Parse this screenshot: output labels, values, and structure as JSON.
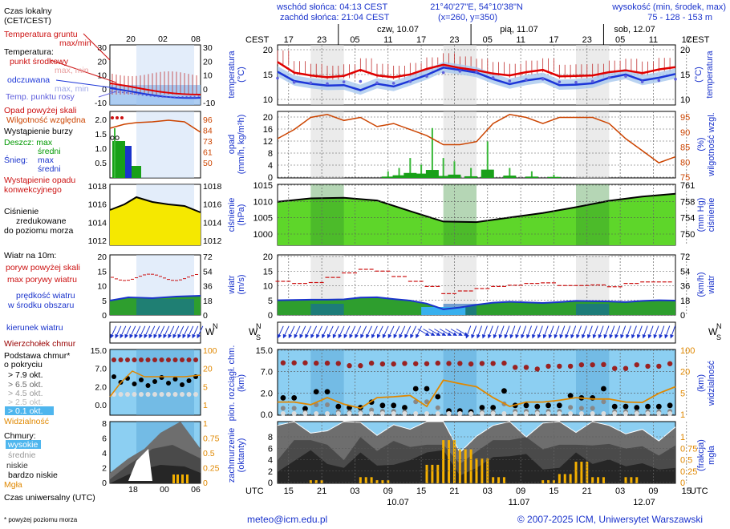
{
  "header": {
    "sunrise": "wschód słońca: 04:13 CEST",
    "sunset": "zachód słońca: 21:04 CEST",
    "coords": "21°40'27\"E, 54°10'38\"N",
    "grid": "(x=260, y=350)",
    "height_title": "wysokość (min, środek, max)",
    "heights": "75 - 128 - 153 m"
  },
  "footer": {
    "email": "meteo@icm.edu.pl",
    "copyright": "© 2007-2025 ICM, Uniwersytet Warszawski",
    "note": "* powyżej poziomu morza"
  },
  "time_axis": {
    "cest_label": "CEST",
    "utc_label": "UTC",
    "day_labels": [
      "czw, 10.07",
      "pią, 11.07",
      "sob, 12.07"
    ],
    "top_hours": [
      "17",
      "23",
      "05",
      "11",
      "17",
      "23",
      "05",
      "11",
      "17",
      "23",
      "05",
      "11",
      "17"
    ],
    "bottom_hours": [
      "15",
      "21",
      "03",
      "09",
      "15",
      "21",
      "03",
      "09",
      "15",
      "21",
      "03",
      "09",
      "15"
    ],
    "bottom_dates": [
      "10.07",
      "11.07",
      "12.07"
    ]
  },
  "legend": {
    "czas_lokalny": "Czas lokalny",
    "cest": "(CET/CEST)",
    "local_ticks": [
      "20",
      "02",
      "08"
    ],
    "utc_ticks": [
      "18",
      "00",
      "06"
    ],
    "czas_uniwersalny": "Czas uniwersalny (UTC)",
    "temp_gruntu": "Temperatura gruntu",
    "max_min": "max/min",
    "temperatura": "Temperatura:",
    "punkt_srodkowy": "punkt środkowy",
    "max_min_2": "max, min",
    "odczuwana": "odczuwana",
    "max_min_3": "max, min",
    "temp_punktu_rosy": "Temp. punktu rosy",
    "opad_powyzej_skali": "Opad powyżej skali",
    "wilgotnosc": "Wilgotność względna",
    "wystapienie_burzy": "Wystąpienie burzy",
    "deszcz_max": "Deszcz: max",
    "deszcz_sredni": "średni",
    "snieg_max": "max",
    "snieg": "Śnieg:",
    "snieg_sredni": "średni",
    "wystapienie_opadu": "Wystąpienie opadu",
    "konwekcyjnego": "konwekcyjnego",
    "cisnienie_1": "Ciśnienie",
    "cisnienie_2": "zredukowane",
    "cisnienie_3": "do poziomu morza",
    "wiatr_na": "Wiatr na 10m:",
    "poryw_powyzej": "poryw powyżej skali",
    "max_porywy": "max porywy wiatru",
    "predkosc_1": "prędkość wiatru",
    "predkosc_2": "w środku obszaru",
    "kierunek": "kierunek wiatru",
    "wierzcholek": "Wierzchołek chmur",
    "podstawa_1": "Podstawa chmur*",
    "podstawa_2": "o pokryciu",
    "okt_79": "> 7.9 okt.",
    "okt_65": "> 6.5 okt.",
    "okt_45": "> 4.5 okt.",
    "okt_25": "> 2.5 okt.",
    "okt_01": "> 0.1 okt.",
    "widzialnosc": "Widzialność",
    "chmury": "Chmury:",
    "wysokie": "wysokie",
    "srednie": "średnie",
    "niskie": "niskie",
    "bardzo_niskie": "bardzo niskie",
    "mgla": "Mgła"
  },
  "legend_axes": {
    "temp_left": [
      "30",
      "20",
      "10",
      "0",
      "-10"
    ],
    "temp_right": [
      "30",
      "20",
      "10",
      "0",
      "-10"
    ],
    "precip_left": [
      "2.0",
      "1.5",
      "1.0",
      "0.5"
    ],
    "precip_right": [
      "96",
      "84",
      "73",
      "61",
      "50"
    ],
    "press_left": [
      "1018",
      "1016",
      "1014",
      "1012"
    ],
    "press_right": [
      "1018",
      "1016",
      "1014",
      "1012"
    ],
    "wind_left": [
      "20",
      "15",
      "10",
      "5",
      "0"
    ],
    "wind_right": [
      "72",
      "54",
      "36",
      "18",
      "0"
    ],
    "cloud_left": [
      "15.0",
      "7.0",
      "2.0",
      "0.0"
    ],
    "cloud_right": [
      "100",
      "20",
      "5",
      "1"
    ],
    "cover_left": [
      "8",
      "6",
      "4",
      "2",
      "0"
    ],
    "cover_right": [
      "1",
      "0.75",
      "0.5",
      "0.25",
      "0"
    ]
  },
  "chart_data": [
    {
      "type": "line",
      "name": "temperatura",
      "ylabel": "temperatura (°C)",
      "ylim": [
        8,
        21
      ],
      "yticks_left": [
        "20",
        "15",
        "10"
      ],
      "yticks_right": [
        "20",
        "15",
        "10"
      ],
      "x_hours_from_start": [
        0,
        3,
        6,
        9,
        12,
        15,
        18,
        21,
        24,
        27,
        30,
        33,
        36,
        39,
        42,
        45,
        48,
        51,
        54,
        57,
        60,
        63,
        66,
        69,
        72
      ],
      "series": [
        {
          "name": "temperatura",
          "color": "#e00000",
          "values": [
            17.3,
            15.0,
            14.4,
            14.0,
            14.3,
            15.6,
            14.4,
            14.0,
            14.6,
            15.8,
            16.7,
            16.0,
            15.5,
            14.8,
            14.4,
            15.1,
            15.6,
            14.2,
            14.3,
            14.4,
            15.1,
            15.5,
            14.9,
            15.7,
            16.2
          ]
        },
        {
          "name": "odczuwana",
          "color": "#1c36d8",
          "values": [
            15.2,
            13.2,
            12.6,
            12.2,
            12.3,
            11.2,
            12.6,
            12.0,
            13.2,
            14.5,
            16.1,
            15.6,
            15.0,
            13.6,
            12.5,
            13.3,
            13.8,
            12.3,
            12.4,
            12.7,
            13.9,
            14.6,
            13.3,
            13.9,
            14.7
          ]
        },
        {
          "name": "punkt rosy",
          "color": "#6060dd",
          "values": [
            13.8,
            12.9,
            12.8,
            12.6,
            13.0,
            13.1,
            12.8,
            12.7,
            13.1,
            14.2,
            15.0,
            15.3,
            15.2,
            13.9,
            13.2,
            13.5,
            13.6,
            13.0,
            12.9,
            13.1,
            13.9,
            14.2,
            13.0,
            13.3,
            13.6
          ]
        }
      ]
    },
    {
      "type": "bar",
      "name": "opad",
      "ylabel": "opad (mm/h, kg/m²/h)",
      "ylim": [
        0,
        20
      ],
      "yticks_left": [
        "20",
        "16",
        "12",
        "8",
        "4",
        "0"
      ],
      "yticks_right": [
        "95",
        "90",
        "85",
        "80",
        "75"
      ],
      "ylabel_right": "(%) wilgotność wzgl.",
      "humidity_x_hours": [
        0,
        3,
        6,
        9,
        12,
        15,
        18,
        21,
        24,
        27,
        30,
        33,
        36,
        39,
        42,
        45,
        48,
        51,
        54,
        57,
        60,
        63,
        66,
        69,
        72
      ],
      "humidity": [
        88,
        91,
        95,
        96,
        94,
        95,
        92,
        93,
        91,
        89,
        86,
        86,
        87,
        93,
        96,
        95,
        93,
        95,
        95,
        95,
        93,
        88,
        84,
        80,
        82
      ],
      "precip_x_hours": [
        20,
        22,
        24,
        26,
        28,
        30,
        32,
        35,
        38,
        42,
        46,
        50
      ],
      "precip_mean": [
        0.4,
        0.8,
        1.5,
        1.3,
        2.4,
        0.6,
        1.0,
        0.5,
        2.5,
        0.7,
        0.4,
        0.3
      ],
      "precip_max": [
        2,
        3,
        6,
        4,
        15,
        6,
        5,
        3,
        11,
        3,
        2,
        1
      ]
    },
    {
      "type": "area",
      "name": "ciśnienie",
      "ylabel": "ciśnienie (hPa)",
      "ylim": [
        995,
        1015
      ],
      "yticks_left": [
        "1015",
        "1010",
        "1005",
        "1000"
      ],
      "yticks_right": [
        "761",
        "758",
        "754",
        "750"
      ],
      "ylabel_right": "(mm Hg) ciśnienie",
      "x_hours_from_start": [
        0,
        6,
        12,
        18,
        24,
        30,
        36,
        42,
        48,
        54,
        60,
        66,
        72
      ],
      "values": [
        1009.3,
        1010.4,
        1010.6,
        1009.7,
        1006.2,
        1002.8,
        1002.6,
        1004.1,
        1005.6,
        1007.5,
        1009.6,
        1011.0,
        1011.9
      ]
    },
    {
      "type": "line",
      "name": "wiatr",
      "ylabel": "wiatr (m/s)",
      "ylim": [
        0,
        20
      ],
      "yticks_left": [
        "20",
        "15",
        "10",
        "5",
        "0"
      ],
      "yticks_right": [
        "72",
        "54",
        "36",
        "18",
        "0"
      ],
      "ylabel_right": "(km/h) wiatr",
      "x_hours_from_start": [
        0,
        3,
        6,
        9,
        12,
        15,
        18,
        21,
        24,
        27,
        30,
        33,
        36,
        39,
        42,
        45,
        48,
        51,
        54,
        57,
        60,
        63,
        66,
        69,
        72
      ],
      "speed": [
        4.9,
        5.0,
        5.1,
        5.1,
        5.2,
        5.8,
        5.9,
        5.3,
        4.8,
        3.8,
        1.9,
        2.5,
        3.4,
        4.1,
        4.4,
        4.2,
        4.0,
        4.3,
        4.7,
        4.6,
        4.5,
        4.3,
        4.7,
        4.9,
        4.8
      ],
      "gusts": [
        11.2,
        10.5,
        10.8,
        12.5,
        14.0,
        15.2,
        14.6,
        12.8,
        11.2,
        9.5,
        7.1,
        8.0,
        8.8,
        9.5,
        9.9,
        10.5,
        10.7,
        9.8,
        9.8,
        10.0,
        9.4,
        10.5,
        11.0,
        11.0,
        10.5
      ]
    },
    {
      "type": "scatter",
      "name": "chmury",
      "ylabel": "pion. rozciągł. chm. (km)",
      "yticks_left": [
        "15.0",
        "7.0",
        "2.0",
        "0.0"
      ],
      "yticks_right": [
        "100",
        "20",
        "5",
        "1"
      ],
      "ylabel_right": "(km) widzialność",
      "x_hours_from_start": [
        0,
        3,
        6,
        9,
        12,
        15,
        18,
        21,
        24,
        27,
        30,
        33,
        36,
        39,
        42,
        45,
        48,
        51,
        54,
        57,
        60,
        63,
        66,
        69,
        72
      ],
      "cloud_top_km": [
        10.2,
        10.2,
        10.1,
        10.0,
        9.2,
        10.1,
        9.8,
        10.0,
        9.9,
        10.1,
        10.0,
        9.8,
        10.0,
        10.1,
        8.6,
        8.0,
        9.0,
        9.0,
        9.5,
        9.6,
        8.2,
        9.5,
        9.0,
        9.9,
        10.0
      ],
      "cloud_base_km": [
        1.6,
        0.6,
        2.4,
        0.8,
        0.7,
        1.2,
        0.9,
        0.7,
        3.1,
        1.7,
        0.4,
        0.3,
        0.7,
        2.6,
        0.9,
        0.8,
        0.9,
        1.8,
        1.6,
        3.1,
        0.8,
        0.7,
        0.8,
        0.9,
        0.8
      ],
      "visibility_km": [
        3.0,
        3.0,
        2.4,
        4.0,
        2.5,
        1.6,
        4.0,
        4.2,
        4.5,
        2.0,
        8.0,
        7.2,
        6.5,
        4.0,
        2.0,
        3.0,
        3.0,
        3.4,
        4.0,
        3.7,
        3.7,
        3.0,
        2.9,
        5.0,
        6.5
      ]
    },
    {
      "type": "area",
      "name": "zachmurzenie",
      "ylabel": "zachmurzenie (oktanty)",
      "ylim": [
        0,
        8
      ],
      "yticks_left": [
        "8",
        "6",
        "4",
        "2",
        "0"
      ],
      "yticks_right": [
        "1",
        "0.75",
        "0.5",
        "0.25",
        "0"
      ],
      "ylabel_right": "(frakcja) mgła",
      "x_hours_from_start": [
        0,
        3,
        6,
        9,
        12,
        15,
        18,
        21,
        24,
        27,
        30,
        33,
        36,
        39,
        42,
        45,
        48,
        51,
        54,
        57,
        60,
        63,
        66,
        69,
        72
      ],
      "high": [
        7.5,
        8.0,
        6.5,
        6.8,
        8.0,
        7.9,
        6.2,
        7.6,
        7.0,
        8.0,
        8.0,
        4.0,
        6.1,
        7.5,
        8.0,
        6.0,
        7.8,
        8.0,
        6.6,
        8.0,
        7.5,
        6.4,
        7.0,
        5.5,
        7.3
      ],
      "mid": [
        3.0,
        5.6,
        5.6,
        5.0,
        3.0,
        6.0,
        4.2,
        5.5,
        4.7,
        5.0,
        5.0,
        2.5,
        4.1,
        5.6,
        5.6,
        6.0,
        4.4,
        5.0,
        5.0,
        4.9,
        5.1,
        4.5,
        4.8,
        3.6,
        4.9
      ],
      "low": [
        1.5,
        2.9,
        4.3,
        2.5,
        2.0,
        4.0,
        2.3,
        2.4,
        3.0,
        4.0,
        4.3,
        1.0,
        2.0,
        3.4,
        3.5,
        3.8,
        1.8,
        2.0,
        4.0,
        2.5,
        3.1,
        2.2,
        2.6,
        1.8,
        2.0
      ],
      "fog": [
        0,
        0,
        0.05,
        0,
        0,
        0.1,
        0.05,
        0,
        0,
        0.3,
        0.7,
        0.55,
        0.4,
        0.1,
        0,
        0,
        0.05,
        0.15,
        0.35,
        0.1,
        0,
        0.1,
        0,
        0,
        0
      ]
    }
  ]
}
